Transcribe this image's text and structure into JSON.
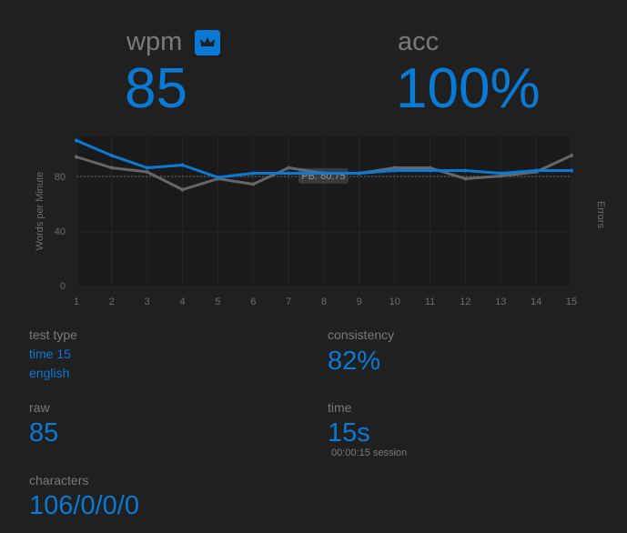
{
  "stats": {
    "wpm_label": "wpm",
    "wpm": "85",
    "acc_label": "acc",
    "acc": "100%",
    "test_type_label": "test type",
    "test_type": "time 15",
    "language": "english",
    "consistency_label": "consistency",
    "consistency": "82%",
    "raw_label": "raw",
    "raw": "85",
    "time_label": "time",
    "time": "15s",
    "session": "00:00:15 session",
    "characters_label": "characters",
    "characters": "106/0/0/0"
  },
  "chart_data": {
    "type": "line",
    "x": [
      1,
      2,
      3,
      4,
      5,
      6,
      7,
      8,
      9,
      10,
      11,
      12,
      13,
      14,
      15
    ],
    "xlim": [
      1,
      15
    ],
    "xticks": [
      1,
      2,
      3,
      4,
      5,
      6,
      7,
      8,
      9,
      10,
      11,
      12,
      13,
      14,
      15
    ],
    "ylim": [
      0,
      110
    ],
    "yticks": [
      0,
      40,
      80
    ],
    "y_label": "Words per Minute",
    "y2_label": "Errors",
    "grid": true,
    "annotation": {
      "value": 80.75,
      "label": "PB: 80.75"
    },
    "series": [
      {
        "name": "raw",
        "color": "#666666",
        "values": [
          95,
          87,
          84,
          71,
          79,
          75,
          87,
          83,
          83,
          87,
          87,
          79,
          81,
          84,
          96
        ]
      },
      {
        "name": "wpm",
        "color": "#0a7ad7",
        "values": [
          107,
          96,
          87,
          89,
          80,
          83,
          83,
          83,
          83,
          85,
          85,
          85,
          83,
          85,
          85
        ]
      }
    ]
  }
}
